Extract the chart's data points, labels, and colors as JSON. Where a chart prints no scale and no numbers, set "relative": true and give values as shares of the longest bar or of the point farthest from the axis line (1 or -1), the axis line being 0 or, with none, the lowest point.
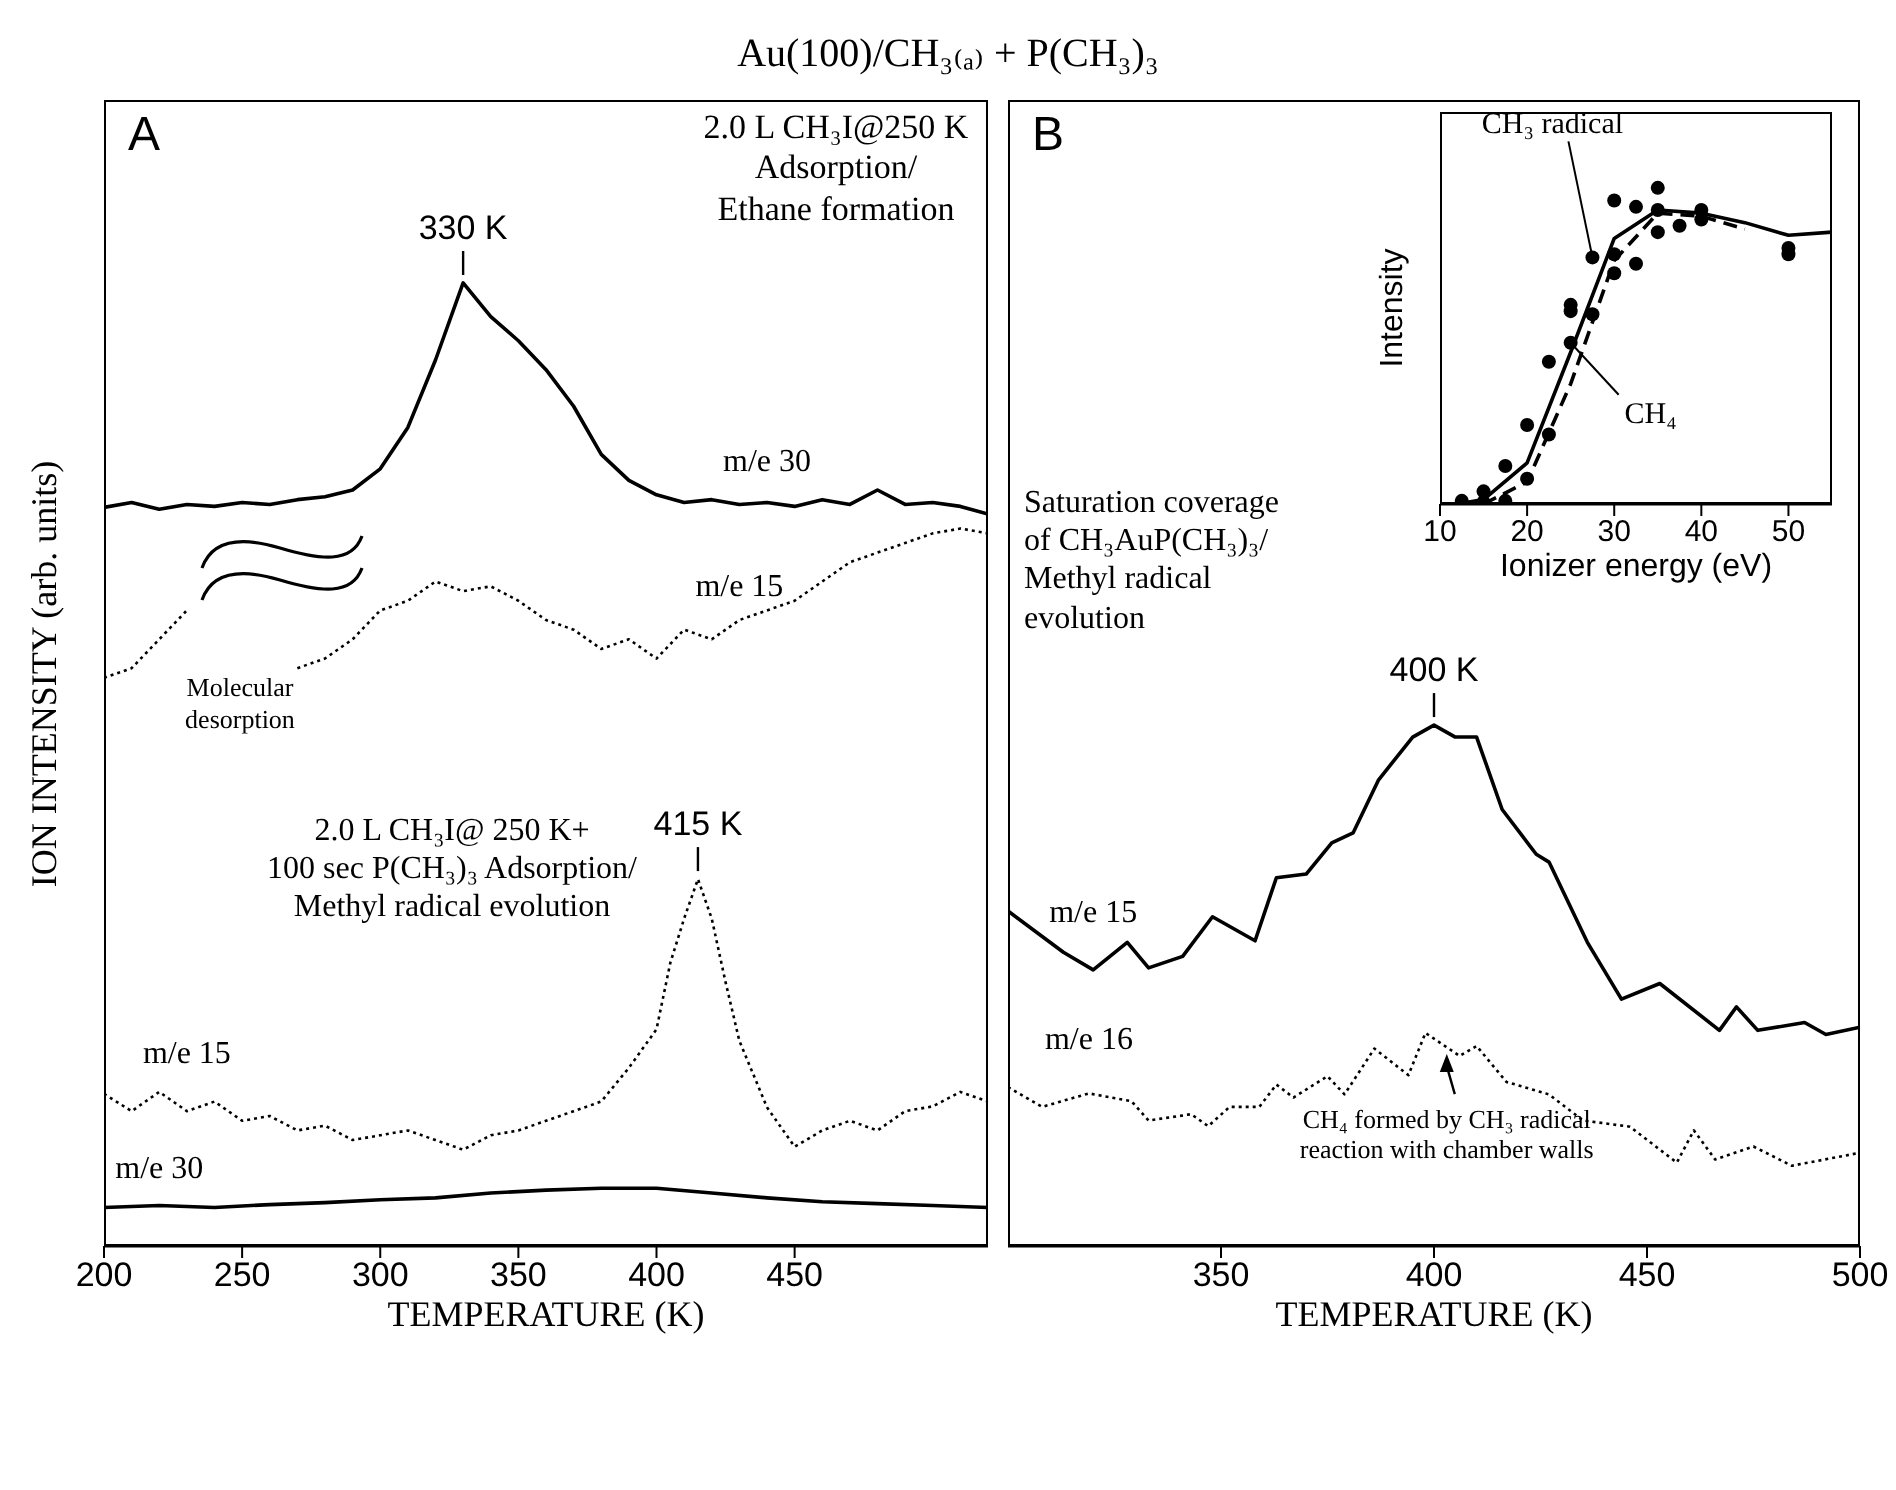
{
  "chart_data": [
    {
      "type": "line",
      "title": "Au(100)/CH₃₍ₐ₎ + P(CH₃)₃",
      "xlabel": "TEMPERATURE (K)",
      "ylabel": "ION INTENSITY (arb. units)",
      "relative": true,
      "tick_labels": "x",
      "xlim": [
        200,
        520
      ],
      "xticks": [
        200,
        250,
        300,
        350,
        400,
        450
      ],
      "annotations": [
        "A",
        {
          "text": "330 K",
          "x": 330,
          "y": 1
        },
        "2.0 L CH₃I@250 K\nAdsorption/\nEthane formation",
        "Molecular\ndesorption",
        {
          "text": "415 K",
          "x": 415,
          "y": 0.381
        },
        "2.0 L CH₃I@ 250 K+\n100 sec P(CH₃)₃ Adsorption/\nMethyl radical evolution"
      ],
      "series": [
        {
          "name": "m/e 30",
          "color": "#000000",
          "line_style": "solid",
          "x": [
            200,
            210,
            220,
            230,
            240,
            250,
            260,
            270,
            280,
            290,
            300,
            310,
            320,
            330,
            340,
            350,
            360,
            370,
            380,
            390,
            400,
            410,
            420,
            430,
            440,
            450,
            460,
            470,
            480,
            490,
            500,
            510,
            520
          ],
          "values": [
            0.767,
            0.772,
            0.765,
            0.77,
            0.768,
            0.772,
            0.77,
            0.775,
            0.778,
            0.785,
            0.807,
            0.85,
            0.92,
            1,
            0.965,
            0.94,
            0.91,
            0.872,
            0.822,
            0.795,
            0.78,
            0.772,
            0.775,
            0.77,
            0.772,
            0.768,
            0.775,
            0.77,
            0.785,
            0.77,
            0.772,
            0.768,
            0.76
          ]
        },
        {
          "name": "m/e 15",
          "color": "#000000",
          "line_style": "dotted",
          "x": [
            200,
            210,
            220,
            230,
            240,
            250,
            260,
            270,
            280,
            290,
            300,
            310,
            320,
            330,
            340,
            350,
            360,
            370,
            380,
            390,
            400,
            410,
            420,
            430,
            440,
            450,
            460,
            470,
            480,
            490,
            500,
            510,
            520
          ],
          "values": [
            0.59,
            0.6,
            0.63,
            0.66,
            null,
            null,
            null,
            0.6,
            0.61,
            0.63,
            0.66,
            0.67,
            0.69,
            0.68,
            0.685,
            0.67,
            0.65,
            0.64,
            0.62,
            0.63,
            0.61,
            0.64,
            0.63,
            0.65,
            0.66,
            0.67,
            0.69,
            0.71,
            0.72,
            0.73,
            0.74,
            0.745,
            0.74
          ]
        },
        {
          "name": "m/e 15",
          "color": "#000000",
          "line_style": "dotted",
          "x": [
            200,
            210,
            220,
            230,
            240,
            250,
            260,
            270,
            280,
            290,
            300,
            310,
            320,
            330,
            340,
            350,
            360,
            370,
            380,
            390,
            400,
            405,
            410,
            415,
            420,
            425,
            430,
            440,
            450,
            460,
            470,
            480,
            490,
            500,
            510,
            520
          ],
          "values": [
            0.158,
            0.14,
            0.16,
            0.14,
            0.15,
            0.13,
            0.135,
            0.12,
            0.125,
            0.11,
            0.115,
            0.12,
            0.11,
            0.1,
            0.115,
            0.12,
            0.13,
            0.14,
            0.15,
            0.185,
            0.225,
            0.294,
            0.34,
            0.381,
            0.34,
            0.274,
            0.213,
            0.144,
            0.103,
            0.12,
            0.13,
            0.12,
            0.14,
            0.145,
            0.16,
            0.15
          ]
        },
        {
          "name": "m/e 30",
          "color": "#000000",
          "line_style": "solid",
          "x": [
            200,
            220,
            240,
            260,
            280,
            300,
            320,
            340,
            360,
            380,
            400,
            420,
            440,
            460,
            480,
            500,
            520
          ],
          "values": [
            0.04,
            0.042,
            0.04,
            0.043,
            0.045,
            0.048,
            0.05,
            0.055,
            0.058,
            0.06,
            0.06,
            0.055,
            0.05,
            0.046,
            0.044,
            0.042,
            0.04
          ]
        }
      ]
    },
    {
      "type": "line",
      "xlabel": "TEMPERATURE (K)",
      "relative": true,
      "tick_labels": "x",
      "xlim": [
        300,
        500
      ],
      "xticks": [
        350,
        400,
        450,
        500
      ],
      "annotations": [
        "B",
        "Saturation coverage\nof CH₃AuP(CH₃)₃/\nMethyl radical\nevolution",
        {
          "text": "400 K",
          "x": 400,
          "y": 1
        },
        {
          "text": "CH₄ formed by  CH₃ radical\nreaction with chamber walls",
          "x": 403,
          "y": 0.38
        }
      ],
      "series": [
        {
          "name": "m/e 15",
          "color": "#000000",
          "line_style": "solid",
          "x": [
            300,
            313,
            320,
            328,
            333,
            341,
            348,
            358,
            363,
            370,
            376,
            381,
            387,
            395,
            400,
            405,
            410,
            416,
            424,
            427,
            436,
            444,
            453,
            467,
            471,
            476,
            487,
            492,
            500
          ],
          "values": [
            0.643,
            0.564,
            0.53,
            0.583,
            0.534,
            0.556,
            0.632,
            0.586,
            0.707,
            0.714,
            0.774,
            0.793,
            0.895,
            0.977,
            1,
            0.977,
            0.977,
            0.838,
            0.752,
            0.737,
            0.583,
            0.474,
            0.504,
            0.414,
            0.459,
            0.414,
            0.429,
            0.406,
            0.42
          ]
        },
        {
          "name": "m/e 16",
          "color": "#000000",
          "line_style": "dotted",
          "x": [
            300,
            308,
            319,
            329,
            333,
            343,
            347,
            352,
            359,
            363,
            367,
            375,
            379,
            386,
            394,
            398,
            406,
            410,
            417,
            427,
            435,
            446,
            457,
            461,
            466,
            475,
            484,
            500
          ],
          "values": [
            0.305,
            0.267,
            0.293,
            0.278,
            0.241,
            0.253,
            0.23,
            0.267,
            0.267,
            0.31,
            0.285,
            0.326,
            0.291,
            0.379,
            0.328,
            0.409,
            0.365,
            0.384,
            0.315,
            0.291,
            0.241,
            0.229,
            0.16,
            0.222,
            0.166,
            0.191,
            0.154,
            0.179
          ]
        }
      ]
    },
    {
      "type": "line",
      "xlabel": "Ionizer energy (eV)",
      "ylabel": "Intensity",
      "relative": true,
      "tick_labels": "x",
      "xlim": [
        10,
        55
      ],
      "xticks": [
        10,
        20,
        30,
        40,
        50
      ],
      "series": [
        {
          "name": "CH₃ radical",
          "type": "scatter",
          "marker": "circle",
          "color": "#000000",
          "x": [
            12.5,
            15,
            17.5,
            20,
            22.5,
            25,
            25,
            27.5,
            30,
            30,
            32.5,
            35,
            40,
            50
          ],
          "values": [
            0.01,
            0.04,
            0.12,
            0.25,
            0.45,
            0.63,
            0.61,
            0.78,
            0.96,
            0.73,
            0.94,
            0.86,
            0.93,
            0.79
          ]
        },
        {
          "name": "CH₄",
          "type": "scatter",
          "marker": "circle",
          "color": "#000000",
          "x": [
            15,
            17.5,
            20,
            22.5,
            25,
            27.5,
            30,
            32.5,
            35,
            35,
            37.5,
            40,
            50
          ],
          "values": [
            0.006,
            0.01,
            0.08,
            0.22,
            0.51,
            0.6,
            0.79,
            0.76,
            1,
            0.93,
            0.88,
            0.9,
            0.81
          ]
        },
        {
          "color": "#000000",
          "line_style": "solid",
          "x": [
            12,
            15,
            20,
            25,
            30,
            35,
            40,
            45,
            50,
            55
          ],
          "values": [
            0,
            0.014,
            0.13,
            0.48,
            0.84,
            0.93,
            0.92,
            0.89,
            0.85,
            0.86
          ]
        },
        {
          "color": "#000000",
          "line_style": "dashed",
          "x": [
            15,
            20,
            25,
            30,
            35,
            40,
            45
          ],
          "values": [
            0,
            0.07,
            0.38,
            0.77,
            0.92,
            0.91,
            0.87
          ]
        }
      ]
    }
  ]
}
